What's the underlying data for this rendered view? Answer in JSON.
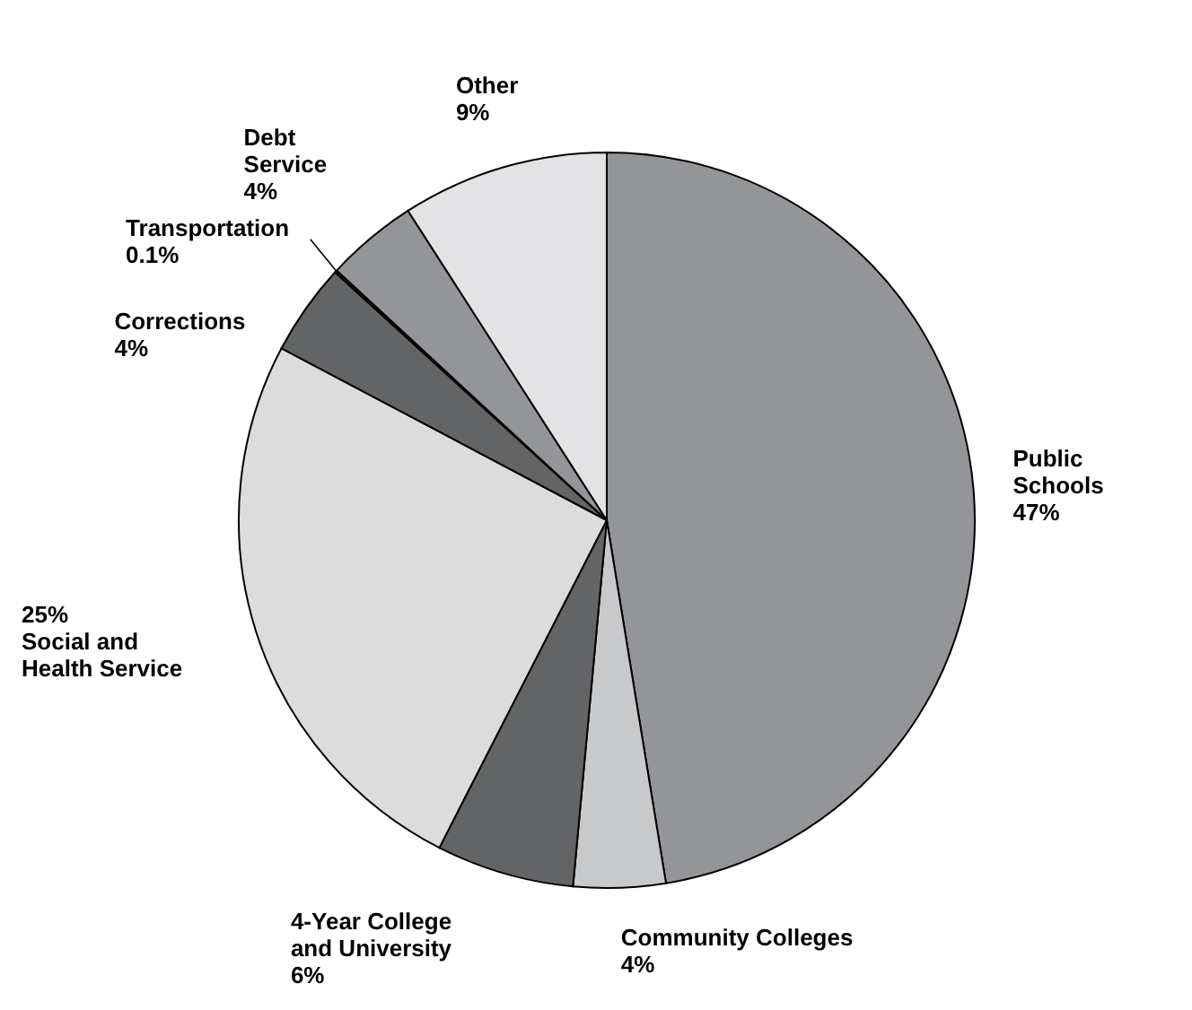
{
  "chart_data": {
    "type": "pie",
    "categories": [
      "Public\nSchools",
      "Community Colleges",
      "4-Year College\nand University",
      "Social and\nHealth Service",
      "Corrections",
      "Transportation",
      "Debt\nService",
      "Other"
    ],
    "values": [
      47,
      4,
      6,
      25,
      4,
      0.1,
      4,
      9
    ],
    "value_labels": [
      "47%",
      "4%",
      "6%",
      "25%",
      "4%",
      "0.1%",
      "4%",
      "9%"
    ],
    "colors": [
      "#939598",
      "#c8c9cb",
      "#636466",
      "#dcdcdc",
      "#636466",
      "#3a3a3a",
      "#939598",
      "#e3e3e5"
    ]
  }
}
